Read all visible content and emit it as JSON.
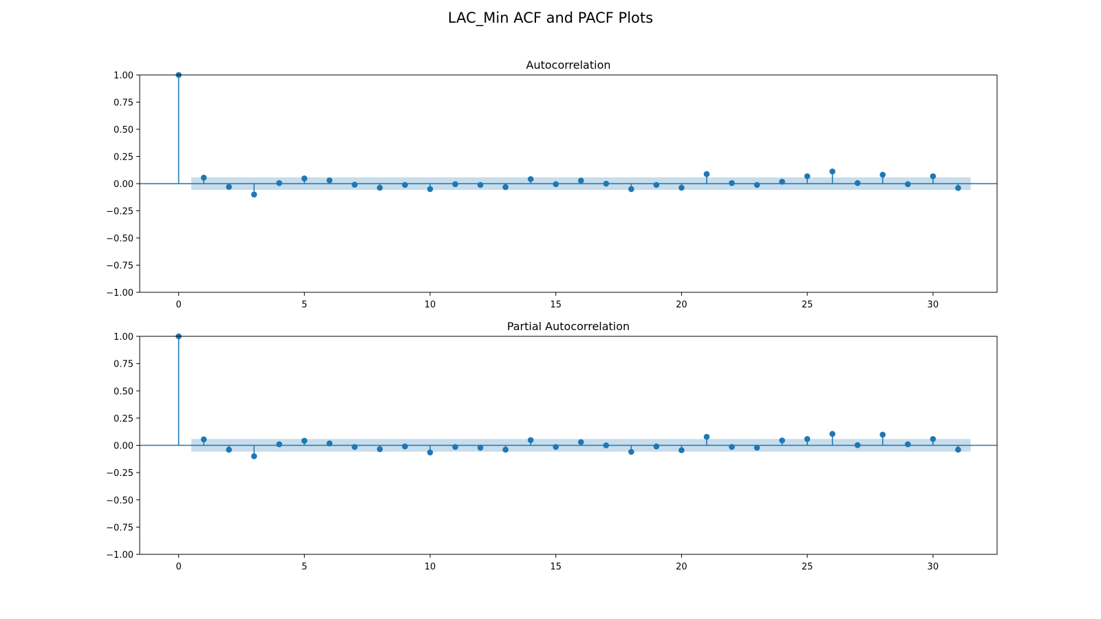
{
  "figure": {
    "title": "LAC_Min ACF and PACF Plots"
  },
  "colors": {
    "series": "#1f77b4",
    "confidence_band": "#1f77b4",
    "axes": "#000000",
    "background": "#ffffff"
  },
  "chart_data": [
    {
      "type": "stem",
      "title": "Autocorrelation",
      "xlabel": "",
      "ylabel": "",
      "xlim": [
        -1.55,
        32.55
      ],
      "ylim": [
        -1.0,
        1.0
      ],
      "xticks": [
        0,
        5,
        10,
        15,
        20,
        25,
        30
      ],
      "xtick_labels": [
        "0",
        "5",
        "10",
        "15",
        "20",
        "25",
        "30"
      ],
      "yticks": [
        -1.0,
        -0.75,
        -0.5,
        -0.25,
        0.0,
        0.25,
        0.5,
        0.75,
        1.0
      ],
      "ytick_labels": [
        "−1.00",
        "−0.75",
        "−0.50",
        "−0.25",
        "0.00",
        "0.25",
        "0.50",
        "0.75",
        "1.00"
      ],
      "grid": false,
      "lags": [
        0,
        1,
        2,
        3,
        4,
        5,
        6,
        7,
        8,
        9,
        10,
        11,
        12,
        13,
        14,
        15,
        16,
        17,
        18,
        19,
        20,
        21,
        22,
        23,
        24,
        25,
        26,
        27,
        28,
        29,
        30,
        31
      ],
      "values": [
        1.0,
        0.055,
        -0.03,
        -0.1,
        0.005,
        0.048,
        0.03,
        -0.01,
        -0.038,
        -0.012,
        -0.05,
        -0.005,
        -0.012,
        -0.032,
        0.042,
        -0.005,
        0.028,
        0.0,
        -0.05,
        -0.012,
        -0.038,
        0.088,
        0.005,
        -0.012,
        0.018,
        0.068,
        0.112,
        0.005,
        0.082,
        -0.005,
        0.068,
        -0.04
      ],
      "confidence_band": {
        "x_start": 0.5,
        "x_end": 31.5,
        "upper": 0.058,
        "lower": -0.058
      }
    },
    {
      "type": "stem",
      "title": "Partial Autocorrelation",
      "xlabel": "",
      "ylabel": "",
      "xlim": [
        -1.55,
        32.55
      ],
      "ylim": [
        -1.0,
        1.0
      ],
      "xticks": [
        0,
        5,
        10,
        15,
        20,
        25,
        30
      ],
      "xtick_labels": [
        "0",
        "5",
        "10",
        "15",
        "20",
        "25",
        "30"
      ],
      "yticks": [
        -1.0,
        -0.75,
        -0.5,
        -0.25,
        0.0,
        0.25,
        0.5,
        0.75,
        1.0
      ],
      "ytick_labels": [
        "−1.00",
        "−0.75",
        "−0.50",
        "−0.25",
        "0.00",
        "0.25",
        "0.50",
        "0.75",
        "1.00"
      ],
      "grid": false,
      "lags": [
        0,
        1,
        2,
        3,
        4,
        5,
        6,
        7,
        8,
        9,
        10,
        11,
        12,
        13,
        14,
        15,
        16,
        17,
        18,
        19,
        20,
        21,
        22,
        23,
        24,
        25,
        26,
        27,
        28,
        29,
        30,
        31
      ],
      "values": [
        1.0,
        0.055,
        -0.04,
        -0.1,
        0.01,
        0.042,
        0.018,
        -0.015,
        -0.035,
        -0.01,
        -0.065,
        -0.015,
        -0.022,
        -0.04,
        0.048,
        -0.015,
        0.03,
        0.0,
        -0.06,
        -0.01,
        -0.045,
        0.078,
        -0.015,
        -0.022,
        0.045,
        0.058,
        0.105,
        0.002,
        0.098,
        0.01,
        0.058,
        -0.04
      ],
      "confidence_band": {
        "x_start": 0.5,
        "x_end": 31.5,
        "upper": 0.058,
        "lower": -0.058
      }
    }
  ]
}
